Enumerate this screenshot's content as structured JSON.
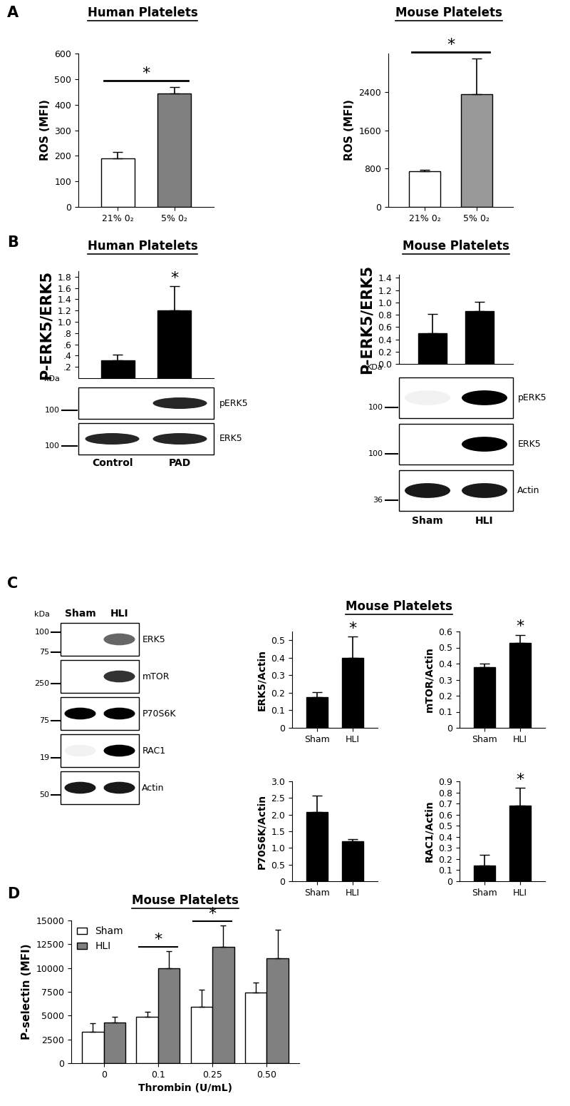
{
  "panel_labels": [
    "A",
    "B",
    "C",
    "D"
  ],
  "headers": [
    {
      "panel": "A",
      "text": "Human Platelets"
    },
    {
      "panel": "A",
      "text": "Mouse Platelets"
    },
    {
      "panel": "B",
      "text": "Human Platelets"
    },
    {
      "panel": "B",
      "text": "Mouse Platelets"
    },
    {
      "panel": "C",
      "text": "Mouse Platelets"
    },
    {
      "panel": "D",
      "text": "Mouse Platelets"
    }
  ],
  "chart_data": [
    {
      "panel": "A",
      "type": "bar",
      "ylabel": "ROS (MFI)",
      "categories": [
        "21% 0₂",
        "5% 0₂"
      ],
      "values": [
        190,
        445
      ],
      "errors": [
        25,
        25
      ],
      "colors": [
        "#ffffff",
        "#808080"
      ],
      "ylim": [
        0,
        600
      ],
      "yticks": [
        0,
        100,
        200,
        300,
        400,
        500,
        600
      ],
      "significance": [
        {
          "text": "*",
          "from": 0,
          "to": 1
        }
      ]
    },
    {
      "panel": "A",
      "type": "bar",
      "ylabel": "ROS (MFI)",
      "categories": [
        "21% 0₂",
        "5% 0₂"
      ],
      "values": [
        750,
        2350
      ],
      "errors": [
        20,
        750
      ],
      "colors": [
        "#ffffff",
        "#999999"
      ],
      "ylim": [
        0,
        3200
      ],
      "yticks": [
        0,
        800,
        1600,
        2400
      ],
      "significance": [
        {
          "text": "*",
          "from": 0,
          "to": 1
        }
      ]
    },
    {
      "panel": "B",
      "type": "bar",
      "ylabel": "P-ERK5/ERK5",
      "categories": [
        null,
        null
      ],
      "tick_labels": "y",
      "values": [
        0.32,
        1.2
      ],
      "errors": [
        0.1,
        0.43
      ],
      "colors": [
        "#000000",
        "#000000"
      ],
      "ylim": [
        0,
        1.9
      ],
      "yticks": [
        {
          "value": 0.2,
          "label": ".2"
        },
        {
          "value": 0.4,
          "label": ".4"
        },
        {
          "value": 0.6,
          "label": ".6"
        },
        {
          "value": 0.8,
          "label": ".8"
        },
        1.0,
        1.2,
        1.4,
        1.6,
        1.8
      ],
      "significance": [
        {
          "text": "*",
          "at": 1
        }
      ]
    },
    {
      "panel": "B",
      "type": "bar",
      "ylabel": "P-ERK5/ERK5",
      "categories": [
        null,
        null
      ],
      "tick_labels": "y",
      "values": [
        0.5,
        0.86
      ],
      "errors": [
        0.31,
        0.15
      ],
      "colors": [
        "#000000",
        "#000000"
      ],
      "ylim": [
        0,
        1.45
      ],
      "yticks": [
        0.0,
        0.2,
        0.4,
        0.6,
        0.8,
        1.0,
        1.2,
        1.4
      ]
    },
    {
      "panel": "C",
      "type": "bar",
      "ylabel": "ERK5/Actin",
      "categories": [
        "Sham",
        "HLI"
      ],
      "values": [
        0.175,
        0.4
      ],
      "errors": [
        0.03,
        0.12
      ],
      "colors": [
        "#000000",
        "#000000"
      ],
      "ylim": [
        0,
        0.55
      ],
      "yticks": [
        0,
        0.1,
        0.2,
        0.3,
        0.4,
        0.5
      ],
      "significance": [
        {
          "text": "*",
          "at": 1
        }
      ]
    },
    {
      "panel": "C",
      "type": "bar",
      "ylabel": "mTOR/Actin",
      "categories": [
        "Sham",
        "HLI"
      ],
      "values": [
        0.38,
        0.53
      ],
      "errors": [
        0.02,
        0.05
      ],
      "colors": [
        "#000000",
        "#000000"
      ],
      "ylim": [
        0,
        0.6
      ],
      "yticks": [
        0,
        0.1,
        0.2,
        0.3,
        0.4,
        0.5,
        0.6
      ],
      "significance": [
        {
          "text": "*",
          "at": 1
        }
      ]
    },
    {
      "panel": "C",
      "type": "bar",
      "ylabel": "P70S6K/Actin",
      "categories": [
        "Sham",
        "HLI"
      ],
      "values": [
        2.07,
        1.2
      ],
      "errors": [
        0.5,
        0.07
      ],
      "colors": [
        "#000000",
        "#000000"
      ],
      "ylim": [
        0,
        3.0
      ],
      "yticks": [
        0,
        0.5,
        1.0,
        1.5,
        2.0,
        2.5,
        3.0
      ]
    },
    {
      "panel": "C",
      "type": "bar",
      "ylabel": "RAC1/Actin",
      "categories": [
        "Sham",
        "HLI"
      ],
      "values": [
        0.14,
        0.68
      ],
      "errors": [
        0.1,
        0.16
      ],
      "colors": [
        "#000000",
        "#000000"
      ],
      "ylim": [
        0,
        0.9
      ],
      "yticks": [
        0,
        0.1,
        0.2,
        0.3,
        0.4,
        0.5,
        0.6,
        0.7,
        0.8,
        0.9
      ],
      "significance": [
        {
          "text": "*",
          "at": 1
        }
      ]
    },
    {
      "panel": "D",
      "type": "bar",
      "ylabel": "P-selectin (MFI)",
      "xlabel": "Thrombin (U/mL)",
      "categories": [
        "0",
        "0.1",
        "0.25",
        "0.50"
      ],
      "series": [
        {
          "name": "Sham",
          "color": "#ffffff",
          "values": [
            3300,
            4900,
            5900,
            7400
          ],
          "errors": [
            900,
            500,
            1800,
            1100
          ]
        },
        {
          "name": "HLI",
          "color": "#808080",
          "values": [
            4300,
            10000,
            12200,
            11000
          ],
          "errors": [
            600,
            1800,
            2300,
            3000
          ]
        }
      ],
      "ylim": [
        0,
        15000
      ],
      "yticks": [
        0,
        2500,
        5000,
        7500,
        10000,
        12500,
        15000
      ],
      "legend": "upper left",
      "significance": [
        {
          "text": "*",
          "at": 1
        },
        {
          "text": "*",
          "at": 2
        }
      ]
    }
  ],
  "blots": [
    {
      "panel": "B",
      "kda_label": "kDa",
      "lanes": [
        "Control",
        "PAD"
      ],
      "rows": [
        {
          "label": "pERK5",
          "markers": [
            100
          ],
          "signal": [
            0.0,
            0.85
          ]
        },
        {
          "label": "ERK5",
          "markers": [
            100
          ],
          "signal": [
            0.85,
            0.85
          ]
        }
      ]
    },
    {
      "panel": "B",
      "kda_label": "KDa",
      "lanes": [
        "Sham",
        "HLI"
      ],
      "rows": [
        {
          "label": "pERK5",
          "markers": [
            100
          ],
          "signal": [
            0.05,
            1.0
          ]
        },
        {
          "label": "ERK5",
          "markers": [
            100
          ],
          "signal": [
            0.0,
            1.0
          ]
        },
        {
          "label": "Actin",
          "markers": [
            36
          ],
          "signal": [
            0.9,
            0.9
          ]
        }
      ]
    },
    {
      "panel": "C",
      "kda_label": "kDa",
      "lanes": [
        "Sham",
        "HLI"
      ],
      "rows": [
        {
          "label": "ERK5",
          "markers": [
            100,
            75
          ],
          "signal": [
            0.0,
            0.6
          ]
        },
        {
          "label": "mTOR",
          "markers": [
            250
          ],
          "signal": [
            0.0,
            0.8
          ]
        },
        {
          "label": "P70S6K",
          "markers": [
            75
          ],
          "signal": [
            1.0,
            1.0
          ]
        },
        {
          "label": "RAC1",
          "markers": [
            19
          ],
          "signal": [
            0.05,
            1.0
          ]
        },
        {
          "label": "Actin",
          "markers": [
            50
          ],
          "signal": [
            0.9,
            0.9
          ]
        }
      ]
    }
  ]
}
